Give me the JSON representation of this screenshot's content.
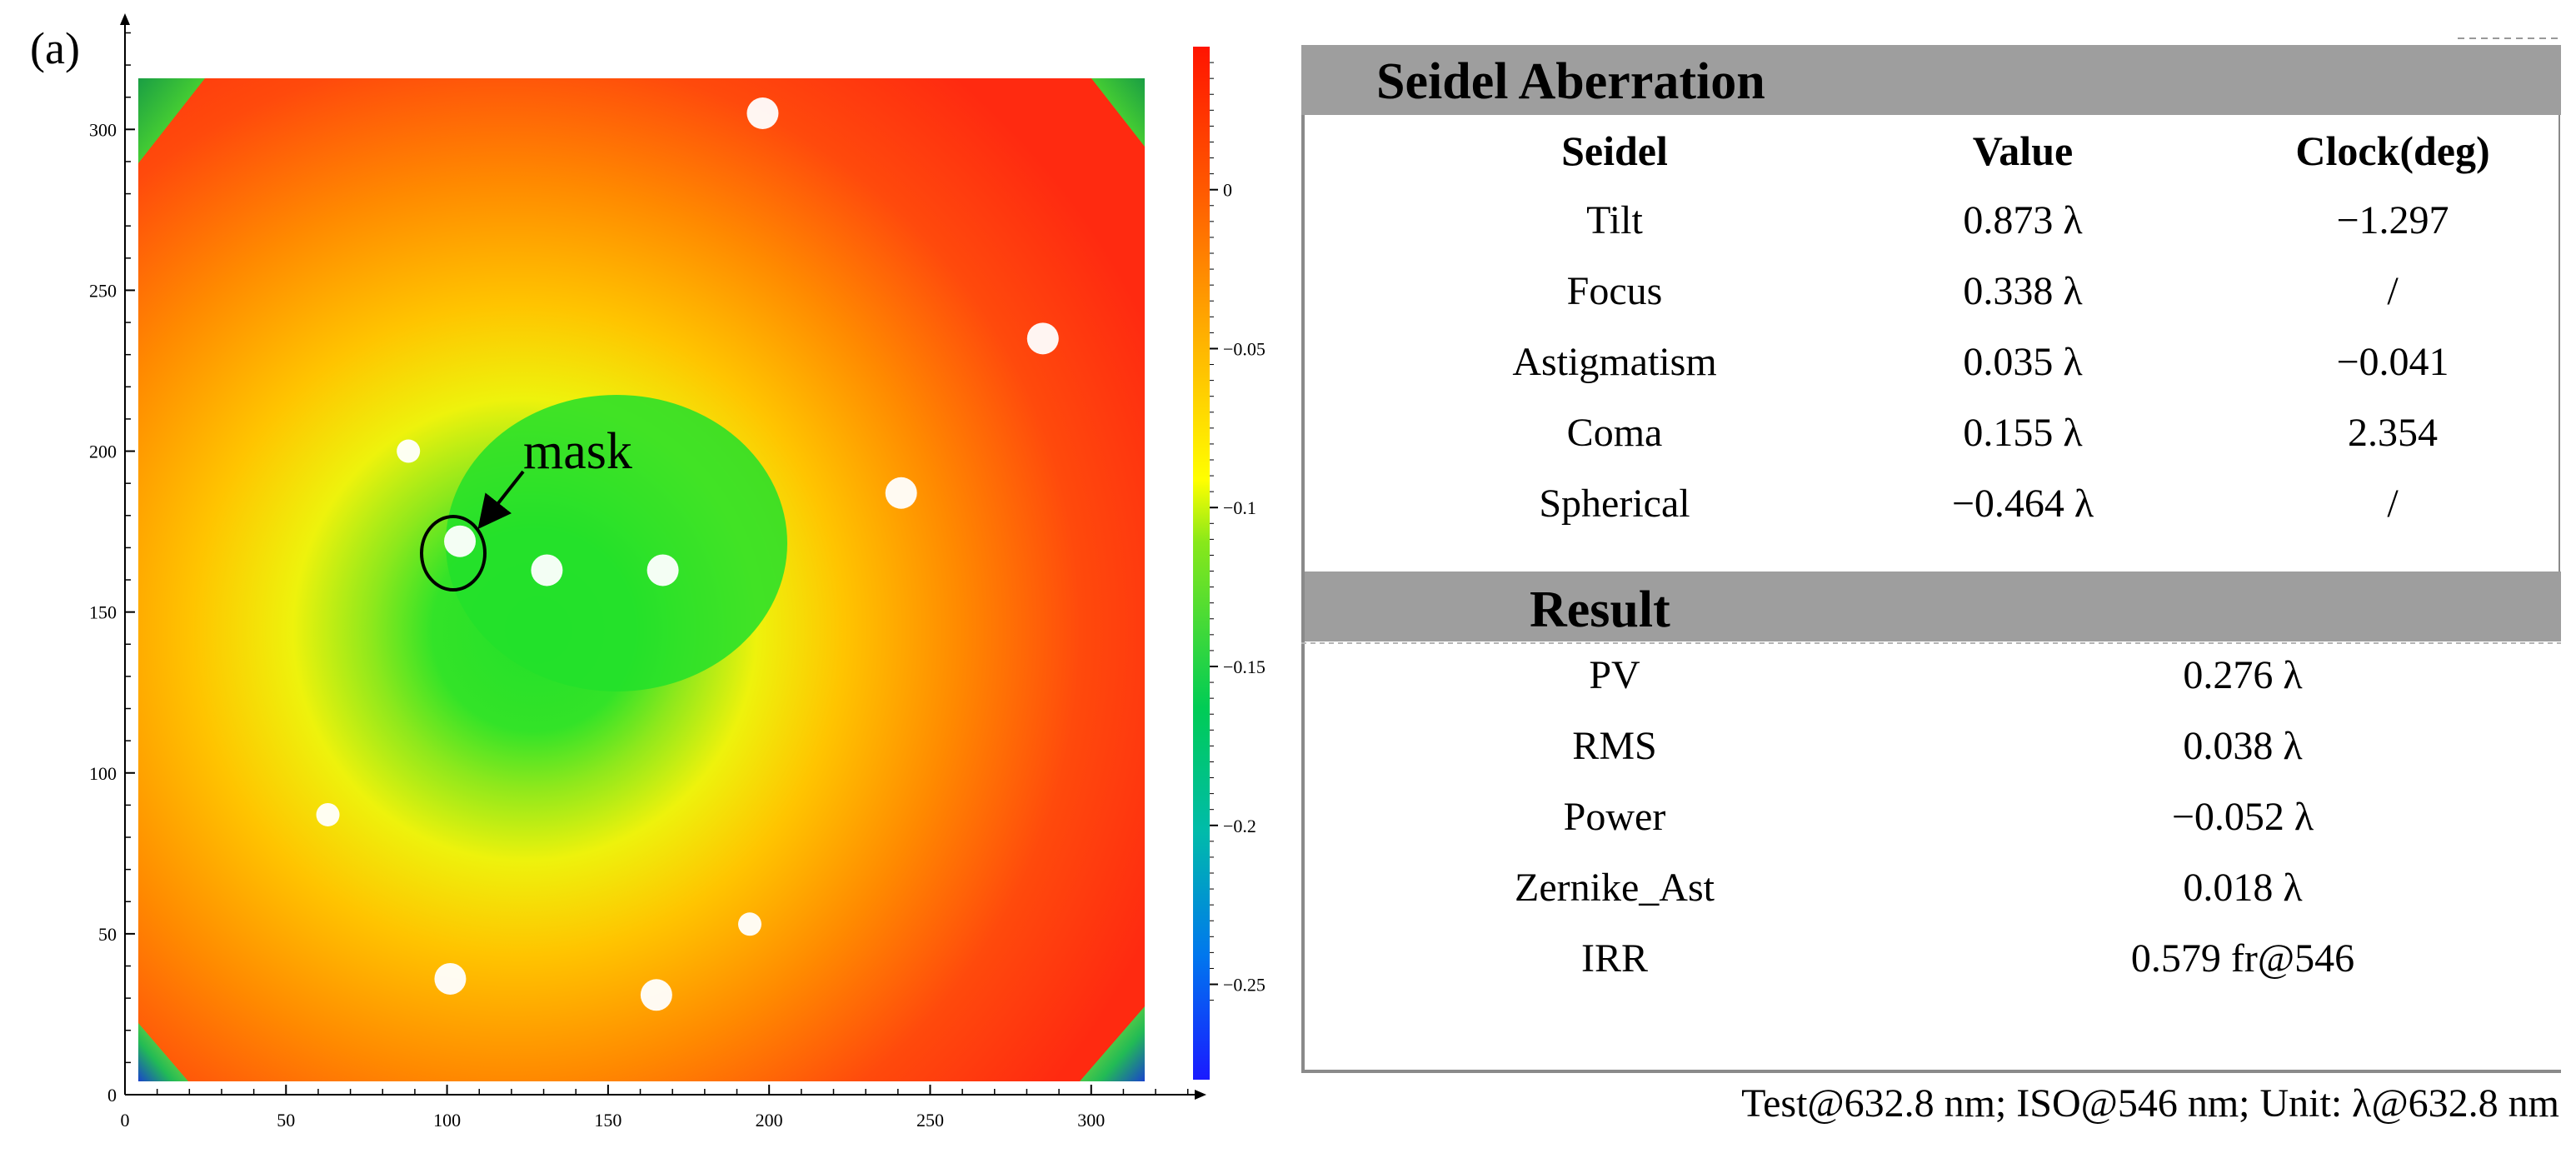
{
  "panel_label": "(a)",
  "chart_data": {
    "type": "heatmap",
    "x_ticks": [
      0,
      50,
      100,
      150,
      200,
      250,
      300
    ],
    "y_ticks": [
      0,
      50,
      100,
      150,
      200,
      250,
      300
    ],
    "xlim": [
      0,
      330
    ],
    "ylim": [
      0,
      330
    ],
    "colorbar": {
      "range": [
        -0.28,
        0.045
      ],
      "ticks": [
        0,
        -0.05,
        -0.1,
        -0.15,
        -0.2,
        -0.25
      ],
      "tick_labels": [
        "0",
        "−0.05",
        "−0.1",
        "−0.15",
        "−0.2",
        "−0.25"
      ],
      "colormap": [
        "#1a1aff",
        "#00bfff",
        "#00cc66",
        "#22dd22",
        "#ffff00",
        "#ffaa00",
        "#ff4400",
        "#ff1a00"
      ]
    },
    "field_description_values": {
      "edge_value": 0.02,
      "center_value": -0.13,
      "corner_value": -0.2
    },
    "mask_points": [
      {
        "x": 198,
        "y": 305
      },
      {
        "x": 285,
        "y": 235
      },
      {
        "x": 88,
        "y": 200
      },
      {
        "x": 241,
        "y": 187
      },
      {
        "x": 104,
        "y": 172
      },
      {
        "x": 131,
        "y": 163
      },
      {
        "x": 167,
        "y": 163
      },
      {
        "x": 63,
        "y": 87
      },
      {
        "x": 194,
        "y": 53
      },
      {
        "x": 101,
        "y": 36
      },
      {
        "x": 165,
        "y": 31
      }
    ],
    "annotation": {
      "text": "mask",
      "target": {
        "x": 104,
        "y": 172
      }
    }
  },
  "seidel": {
    "title": "Seidel Aberration",
    "columns": [
      "Seidel",
      "Value",
      "Clock(deg)"
    ],
    "rows": [
      [
        "Tilt",
        "0.873 λ",
        "−1.297"
      ],
      [
        "Focus",
        "0.338 λ",
        "/"
      ],
      [
        "Astigmatism",
        "0.035 λ",
        "−0.041"
      ],
      [
        "Coma",
        "0.155 λ",
        "2.354"
      ],
      [
        "Spherical",
        "−0.464 λ",
        "/"
      ]
    ]
  },
  "result": {
    "title": "Result",
    "rows": [
      [
        "PV",
        "0.276 λ"
      ],
      [
        "RMS",
        "0.038 λ"
      ],
      [
        "Power",
        "−0.052 λ"
      ],
      [
        "Zernike_Ast",
        "0.018 λ"
      ],
      [
        "IRR",
        "0.579 fr@546"
      ]
    ]
  },
  "footer": "Test@632.8 nm; ISO@546 nm; Unit: λ@632.8 nm",
  "colors": {
    "header_gray": "#9e9e9e",
    "border_gray": "#8a8a8a"
  }
}
